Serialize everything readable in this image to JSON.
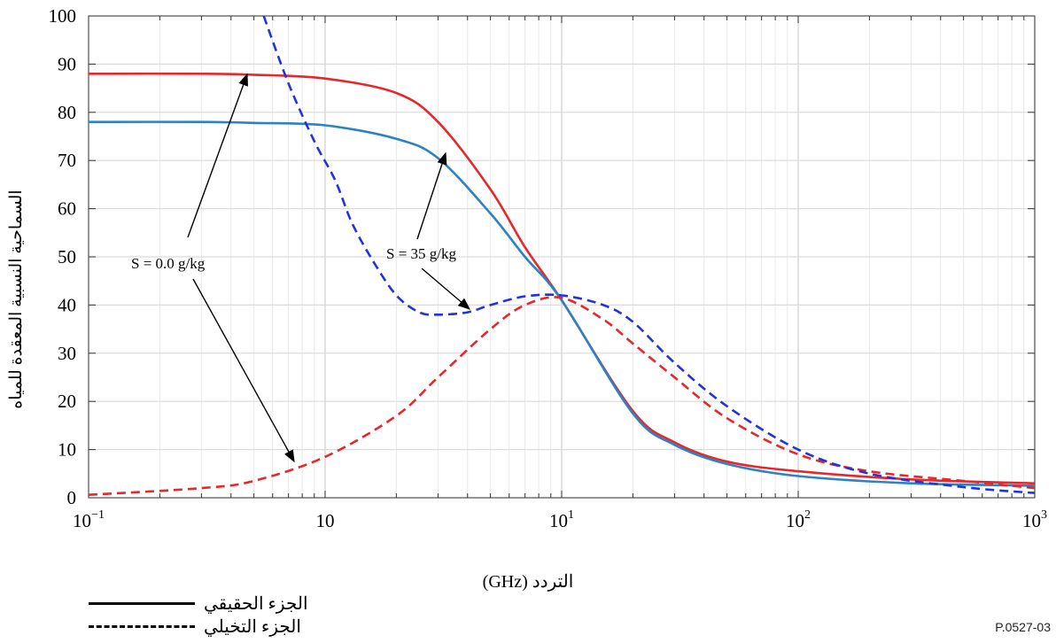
{
  "chart_data": {
    "type": "line",
    "xlabel": "التردد (GHz)",
    "ylabel": "السماحية النسبية المعقدة للمياه",
    "xscale": "log",
    "xlim": [
      0.1,
      1000
    ],
    "ylim": [
      0,
      100
    ],
    "grid": true,
    "x_ticks": [
      {
        "value": 0.1,
        "base": "10",
        "exp": "−1"
      },
      {
        "value": 1,
        "base": "10",
        "exp": ""
      },
      {
        "value": 10,
        "base": "10",
        "exp": "1"
      },
      {
        "value": 100,
        "base": "10",
        "exp": "2"
      },
      {
        "value": 1000,
        "base": "10",
        "exp": "3"
      }
    ],
    "y_ticks": [
      "0",
      "10",
      "20",
      "30",
      "40",
      "50",
      "60",
      "70",
      "80",
      "90",
      "100"
    ],
    "series": [
      {
        "color": "#e8272b",
        "style": "solid",
        "x": [
          0.1,
          0.3,
          0.5,
          1,
          2,
          3,
          5,
          7,
          10,
          20,
          30,
          50,
          100,
          300,
          1000
        ],
        "y": [
          88,
          88,
          87.8,
          87,
          84,
          78,
          64,
          52,
          41,
          18,
          11.5,
          7.5,
          5.5,
          3.8,
          3
        ]
      },
      {
        "color": "#2b82c4",
        "style": "solid",
        "x": [
          0.1,
          0.3,
          0.5,
          1,
          2,
          3,
          5,
          7,
          10,
          20,
          30,
          50,
          100,
          300,
          1000
        ],
        "y": [
          78,
          78,
          77.8,
          77.3,
          74.5,
          70.5,
          59,
          50,
          41,
          17.5,
          11,
          7,
          4.5,
          3,
          2.5
        ]
      },
      {
        "color": "#e8272b",
        "style": "dashed",
        "x": [
          0.1,
          0.3,
          0.5,
          1,
          2,
          3,
          5,
          7,
          10,
          15,
          20,
          30,
          50,
          100,
          200,
          500,
          1000
        ],
        "y": [
          0.6,
          2,
          3.5,
          8.5,
          17,
          25,
          35,
          40,
          41.5,
          37,
          32,
          25,
          16.5,
          9,
          5.5,
          3.5,
          2
        ]
      },
      {
        "color": "#2233dd",
        "style": "dashed",
        "x": [
          0.55,
          0.7,
          0.9,
          1.1,
          1.3,
          1.6,
          2,
          2.5,
          3,
          4,
          5,
          7,
          10,
          15,
          20,
          30,
          50,
          100,
          200,
          500,
          1000
        ],
        "y": [
          100,
          86,
          74,
          66,
          57,
          49,
          42,
          38.5,
          38,
          38.5,
          40,
          41.8,
          42,
          40,
          36.5,
          28,
          19,
          10,
          5,
          2.2,
          1
        ]
      }
    ],
    "annotations": [
      {
        "text": "S = 0.0 g/kg"
      },
      {
        "text": "S = 35 g/kg"
      }
    ],
    "legend": [
      {
        "label": "الجزء الحقيقي",
        "style": "solid"
      },
      {
        "label": "الجزء التخيلي",
        "style": "dashed"
      }
    ]
  },
  "figure_ref": "P.0527-03"
}
